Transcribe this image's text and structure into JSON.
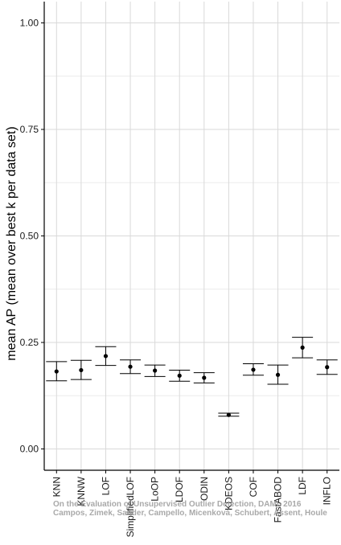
{
  "chart_data": {
    "type": "errorbar",
    "title": "",
    "xlabel": "",
    "ylabel": "mean AP (mean over best k per data set)",
    "ylim": [
      -0.05,
      1.05
    ],
    "yticks": [
      "0.00",
      "0.25",
      "0.50",
      "0.75",
      "1.00"
    ],
    "ytick_values": [
      0,
      0.25,
      0.5,
      0.75,
      1.0
    ],
    "grid": true,
    "categories": [
      "KNN",
      "KNNW",
      "LOF",
      "SimplifiedLOF",
      "LoOP",
      "LDOF",
      "ODIN",
      "KDEOS",
      "COF",
      "FastABOD",
      "LDF",
      "INFLO"
    ],
    "mean": [
      0.182,
      0.185,
      0.218,
      0.193,
      0.184,
      0.172,
      0.167,
      0.08,
      0.186,
      0.174,
      0.238,
      0.192
    ],
    "lower": [
      0.16,
      0.163,
      0.196,
      0.177,
      0.17,
      0.159,
      0.155,
      0.077,
      0.173,
      0.152,
      0.214,
      0.175
    ],
    "upper": [
      0.205,
      0.208,
      0.24,
      0.209,
      0.197,
      0.185,
      0.179,
      0.084,
      0.2,
      0.197,
      0.262,
      0.209
    ]
  },
  "watermark": {
    "line1": "On the Evaluation of Unsupervised Outlier Detection, DAMI, 2016",
    "line2": "Campos, Zimek, Sander, Campello, Micenková, Schubert, Assent, Houle"
  },
  "colors": {
    "background": "#ffffff",
    "grid_major": "#d9d9d9",
    "grid_minor": "#ececec",
    "axis": "#000000",
    "marker": "#000000"
  }
}
